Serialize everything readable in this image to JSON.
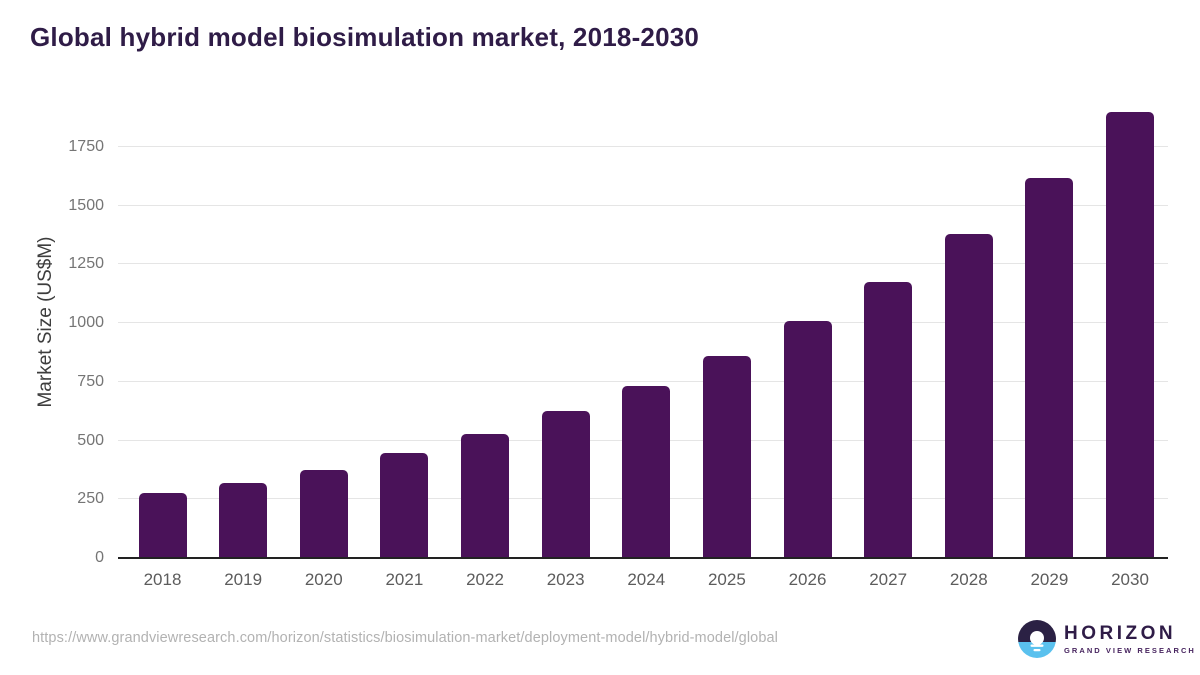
{
  "title": "Global hybrid model biosimulation market, 2018-2030",
  "chart_data": {
    "type": "bar",
    "title": "Global hybrid model biosimulation market, 2018-2030",
    "categories": [
      "2018",
      "2019",
      "2020",
      "2021",
      "2022",
      "2023",
      "2024",
      "2025",
      "2026",
      "2027",
      "2028",
      "2029",
      "2030"
    ],
    "values": [
      275,
      318,
      376,
      447,
      527,
      627,
      733,
      860,
      1007,
      1176,
      1379,
      1619,
      1900
    ],
    "xlabel": "",
    "ylabel": "Market Size (US$M)",
    "ylim": [
      0,
      2000
    ],
    "yticks": [
      0,
      250,
      500,
      750,
      1000,
      1250,
      1500,
      1750
    ],
    "grid": true,
    "legend": false,
    "bar_color": "#4a1259"
  },
  "footer": {
    "source_url": "https://www.grandviewresearch.com/horizon/statistics/biosimulation-market/deployment-model/hybrid-model/global",
    "logo": {
      "name": "HORIZON",
      "subtitle": "GRAND VIEW RESEARCH"
    }
  },
  "colors": {
    "bar": "#4a1259",
    "title_text": "#2f1c47",
    "gridline": "#e5e5e5",
    "axis_line": "#222222",
    "y_tick_text": "#757575",
    "x_tick_text": "#5c5c5c",
    "y_axis_title_text": "#3d3d3d",
    "source_text": "#b2b2b2",
    "logo_dark": "#2b2144",
    "logo_blue": "#5ac1ee",
    "logo_name_text": "#2f1c47",
    "logo_subtitle_text": "#47245f",
    "background": "#ffffff"
  }
}
